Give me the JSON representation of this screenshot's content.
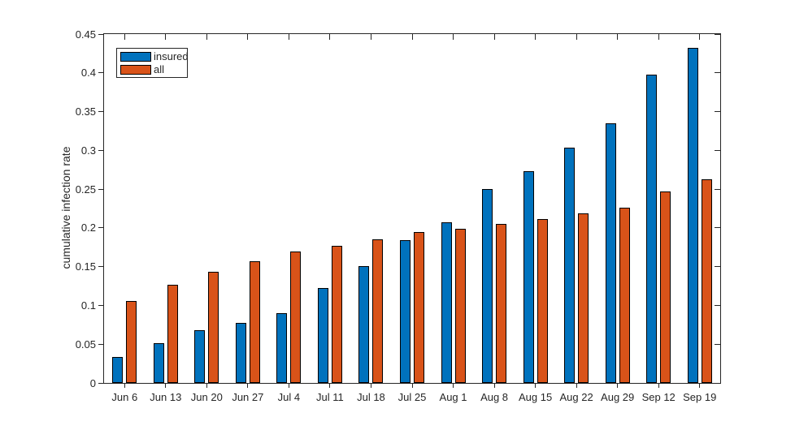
{
  "figure": {
    "background": "#ffffff"
  },
  "chart_data": {
    "type": "bar",
    "title": "",
    "xlabel": "",
    "ylabel": "cumulative infection rate",
    "categories": [
      "Jun 6",
      "Jun 13",
      "Jun 20",
      "Jun 27",
      "Jul 4",
      "Jul 11",
      "Jul 18",
      "Jul 25",
      "Aug 1",
      "Aug 8",
      "Aug 15",
      "Aug 22",
      "Aug 29",
      "Sep 12",
      "Sep 19"
    ],
    "series": [
      {
        "name": "insured",
        "color": "#0072BD",
        "values": [
          0.033,
          0.051,
          0.068,
          0.077,
          0.09,
          0.122,
          0.151,
          0.184,
          0.207,
          0.25,
          0.273,
          0.304,
          0.335,
          0.398,
          0.432
        ]
      },
      {
        "name": "all",
        "color": "#D95319",
        "values": [
          0.106,
          0.127,
          0.143,
          0.157,
          0.17,
          0.177,
          0.185,
          0.195,
          0.199,
          0.205,
          0.211,
          0.219,
          0.226,
          0.247,
          0.263
        ]
      }
    ],
    "ylim": [
      0,
      0.45
    ],
    "ytick_labels": [
      "0",
      "0.05",
      "0.1",
      "0.15",
      "0.2",
      "0.25",
      "0.3",
      "0.35",
      "0.4",
      "0.45"
    ],
    "grid": false,
    "legend": {
      "position": "top-left"
    },
    "bar_edge_color": "#000000",
    "axis_color": "#262626",
    "tick_label_color": "#262626"
  }
}
